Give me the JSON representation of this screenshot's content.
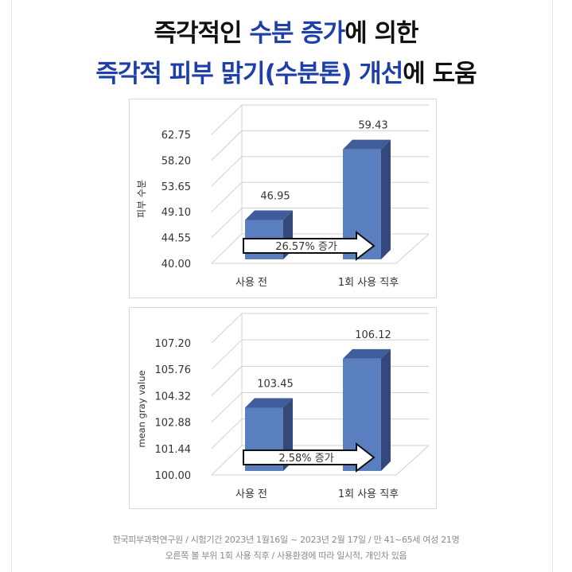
{
  "title": {
    "line1_part1": "즉각적인 ",
    "line1_part2": "수분 증가",
    "line1_part3": "에 의한",
    "line2_part1": "즉각적 피부 맑기(수분톤) 개선",
    "line2_part2": "에 도움"
  },
  "colors": {
    "accent": "#1e3fa8",
    "bar_front": "#5a7fbf",
    "bar_top": "#3f5d9a",
    "bar_side": "#34497a",
    "grid": "#d0d0d0"
  },
  "chart_data": [
    {
      "type": "bar",
      "categories": [
        "사용 전",
        "1회 사용 직후"
      ],
      "values": [
        46.95,
        59.43
      ],
      "data_labels": [
        "46.95",
        "59.43"
      ],
      "ylabel": "피부 수분",
      "yticks": [
        "62.75",
        "58.20",
        "53.65",
        "49.10",
        "44.55",
        "40.00"
      ],
      "ylim": [
        40.0,
        62.75
      ],
      "annotation": "26.57% 증가",
      "grid": true
    },
    {
      "type": "bar",
      "categories": [
        "사용 전",
        "1회 사용 직후"
      ],
      "values": [
        103.45,
        106.12
      ],
      "data_labels": [
        "103.45",
        "106.12"
      ],
      "ylabel": "mean gray value",
      "yticks": [
        "107.20",
        "105.76",
        "104.32",
        "102.88",
        "101.44",
        "100.00"
      ],
      "ylim": [
        100.0,
        107.2
      ],
      "annotation": "2.58% 증가",
      "grid": true
    }
  ],
  "footer": {
    "line1": "한국피부과학연구원 / 시험기간 2023년 1월16일 ~ 2023년 2월 17일 / 만 41~65세 여성 21명",
    "line2": "오른쪽 볼 부위 1회 사용 직후 / 사용환경에 따라 일시적, 개인차 있음"
  }
}
